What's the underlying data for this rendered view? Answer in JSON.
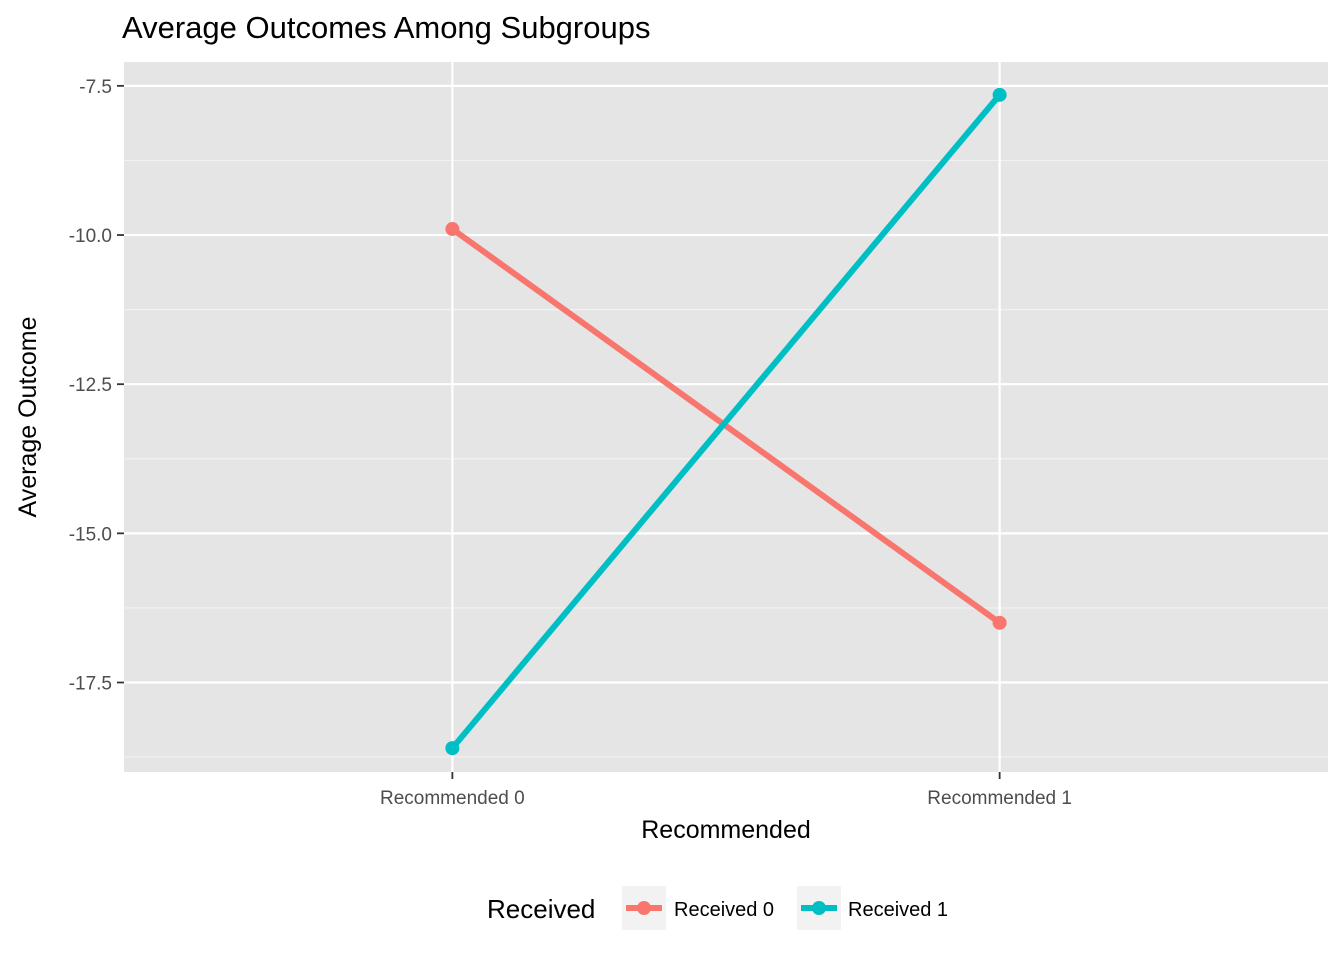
{
  "chart_data": {
    "type": "line",
    "title": "Average Outcomes Among Subgroups",
    "xlabel": "Recommended",
    "ylabel": "Average Outcome",
    "categories": [
      "Recommended 0",
      "Recommended 1"
    ],
    "y_ticks": [
      -7.5,
      -10.0,
      -12.5,
      -15.0,
      -17.5
    ],
    "y_tick_labels": [
      "-7.5",
      "-10.0",
      "-12.5",
      "-15.0",
      "-17.5"
    ],
    "ylim": [
      -19.0,
      -7.1
    ],
    "grid": true,
    "legend": {
      "title": "Received",
      "placement": "bottom"
    },
    "series": [
      {
        "name": "Received 0",
        "color": "#F8766D",
        "values": [
          -9.9,
          -16.5
        ]
      },
      {
        "name": "Received 1",
        "color": "#00BFC4",
        "values": [
          -18.6,
          -7.65
        ]
      }
    ]
  }
}
